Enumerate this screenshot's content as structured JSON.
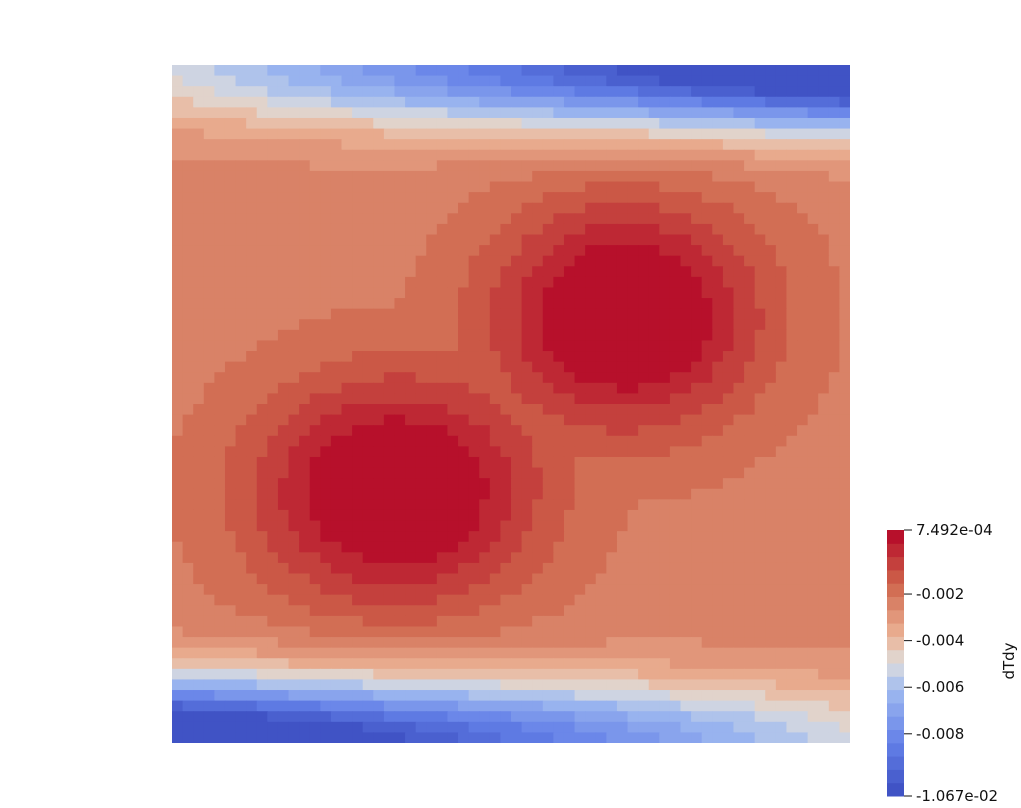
{
  "chart_data": {
    "type": "heatmap",
    "title": "",
    "field_name": "dTdy",
    "value_range": [
      -0.01067,
      0.0007492
    ],
    "colormap": "Cool to Warm",
    "colormap_stops": [
      "#3b4cc0",
      "#dddddd",
      "#b40426"
    ],
    "levels": 20,
    "colorbar": {
      "title": "dTdy",
      "placement": "right",
      "ticks": [
        {
          "value": 0.0007492,
          "label": "7.492e-04"
        },
        {
          "value": -0.002,
          "label": "-0.002"
        },
        {
          "value": -0.004,
          "label": "-0.004"
        },
        {
          "value": -0.006,
          "label": "-0.006"
        },
        {
          "value": -0.008,
          "label": "-0.008"
        },
        {
          "value": -0.01067,
          "label": "-1.067e-02"
        }
      ]
    },
    "features": [
      {
        "name": "upper-right maximum region",
        "value": 0.0007492
      },
      {
        "name": "lower-left maximum region",
        "value": 0.0007492
      },
      {
        "name": "top-right minimum",
        "value": -0.01067
      },
      {
        "name": "bottom-left minimum",
        "value": -0.01067
      }
    ]
  }
}
